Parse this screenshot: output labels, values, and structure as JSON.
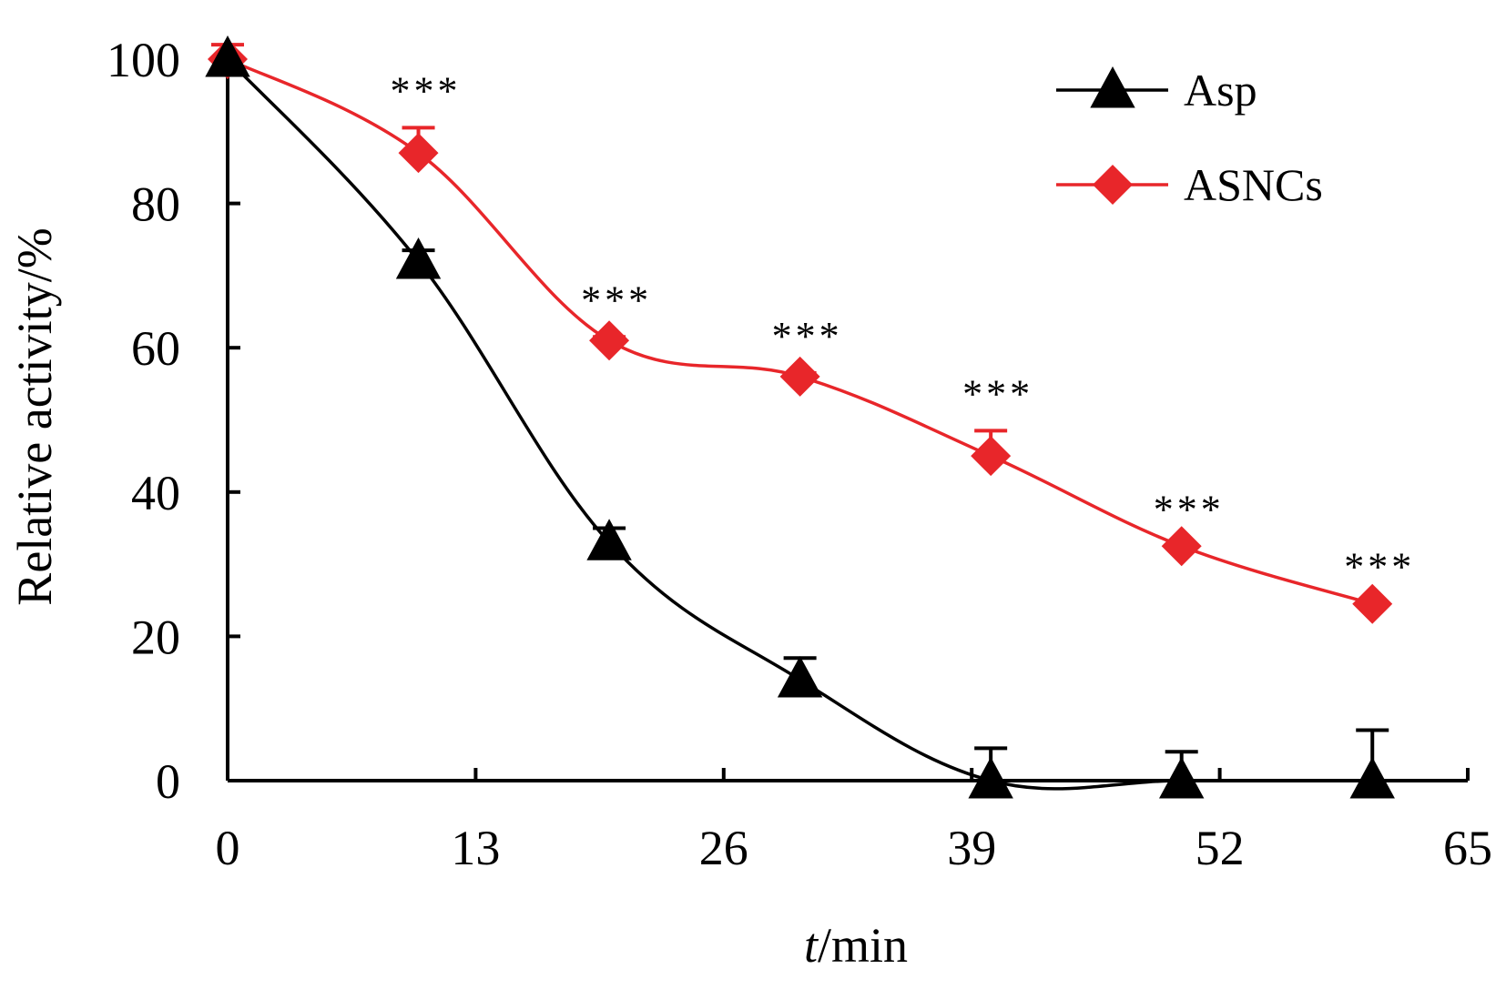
{
  "chart_data": {
    "type": "line",
    "xlabel_italic": "t",
    "xlabel_rest": "/min",
    "ylabel": "Relative activity/%",
    "xlim": [
      0,
      65
    ],
    "ylim": [
      0,
      100
    ],
    "x_ticks": [
      0,
      13,
      26,
      39,
      52,
      65
    ],
    "y_ticks": [
      0,
      20,
      40,
      60,
      80,
      100
    ],
    "legend_position": "top-right",
    "significance_label": "***",
    "series": [
      {
        "name": "Asp",
        "color": "#000000",
        "marker": "triangle",
        "x": [
          0,
          10,
          20,
          30,
          40,
          50,
          60
        ],
        "values": [
          100,
          72,
          33,
          14,
          0,
          0,
          0
        ],
        "errors": [
          0,
          1.5,
          2,
          3,
          4.5,
          4,
          7
        ]
      },
      {
        "name": "ASNCs",
        "color": "#e8262a",
        "marker": "diamond",
        "x": [
          0,
          10,
          20,
          30,
          40,
          50,
          60
        ],
        "values": [
          100,
          87,
          61,
          56,
          45,
          32.5,
          24.5
        ],
        "errors": [
          2,
          3.5,
          0.5,
          0.5,
          3.5,
          0,
          0
        ]
      }
    ],
    "significance_x": [
      10,
      20,
      30,
      40,
      50,
      60
    ]
  }
}
